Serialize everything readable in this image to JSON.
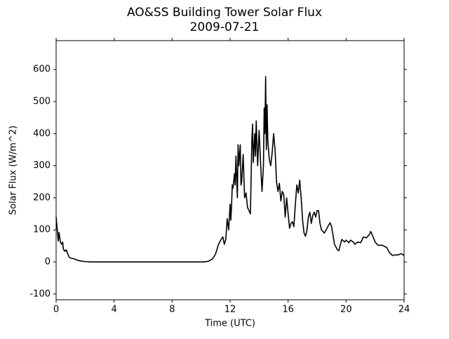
{
  "chart_data": {
    "type": "line",
    "title": "AO&SS Building Tower Solar Flux",
    "subtitle": "2009-07-21",
    "x_label": "Time (UTC)",
    "y_label": "Solar Flux (W/m^2)",
    "x": [
      0,
      0.1,
      0.15,
      0.2,
      0.3,
      0.4,
      0.45,
      0.5,
      0.6,
      0.7,
      0.8,
      0.9,
      1.0,
      1.2,
      1.5,
      1.8,
      2.0,
      2.5,
      10.0,
      10.2,
      10.5,
      10.8,
      11.0,
      11.2,
      11.4,
      11.5,
      11.6,
      11.7,
      11.8,
      11.9,
      12.0,
      12.05,
      12.1,
      12.15,
      12.2,
      12.3,
      12.35,
      12.4,
      12.5,
      12.55,
      12.6,
      12.7,
      12.75,
      12.8,
      12.9,
      13.0,
      13.1,
      13.2,
      13.3,
      13.4,
      13.5,
      13.55,
      13.6,
      13.7,
      13.75,
      13.8,
      13.9,
      14.0,
      14.1,
      14.2,
      14.3,
      14.35,
      14.4,
      14.45,
      14.5,
      14.55,
      14.6,
      14.7,
      14.8,
      14.9,
      15.0,
      15.1,
      15.2,
      15.3,
      15.4,
      15.5,
      15.6,
      15.7,
      15.8,
      15.9,
      16.0,
      16.1,
      16.2,
      16.3,
      16.4,
      16.5,
      16.6,
      16.7,
      16.8,
      16.9,
      17.0,
      17.1,
      17.2,
      17.3,
      17.4,
      17.5,
      17.6,
      17.7,
      17.8,
      17.9,
      18.0,
      18.1,
      18.2,
      18.3,
      18.5,
      18.8,
      18.9,
      19.0,
      19.2,
      19.4,
      19.5,
      19.7,
      19.9,
      20.0,
      20.2,
      20.3,
      20.5,
      20.6,
      20.8,
      21.0,
      21.2,
      21.4,
      21.6,
      21.7,
      21.8,
      22.0,
      22.2,
      22.5,
      22.8,
      23.0,
      23.2,
      23.4,
      23.6,
      23.8,
      24.0
    ],
    "series": [
      {
        "name": "Solar Flux",
        "color": "#000000",
        "values": [
          140,
          90,
          65,
          92,
          60,
          55,
          62,
          40,
          33,
          38,
          25,
          15,
          12,
          10,
          5,
          2,
          1,
          0,
          0,
          0,
          2,
          10,
          25,
          55,
          72,
          78,
          55,
          70,
          135,
          100,
          180,
          130,
          175,
          240,
          230,
          275,
          240,
          330,
          200,
          365,
          300,
          365,
          240,
          250,
          335,
          200,
          215,
          170,
          160,
          150,
          380,
          430,
          310,
          400,
          330,
          440,
          300,
          410,
          310,
          220,
          300,
          480,
          400,
          578,
          350,
          490,
          380,
          320,
          300,
          340,
          400,
          350,
          250,
          220,
          245,
          190,
          220,
          210,
          140,
          200,
          150,
          105,
          120,
          125,
          110,
          180,
          240,
          215,
          255,
          200,
          130,
          90,
          80,
          100,
          140,
          155,
          120,
          145,
          155,
          140,
          160,
          160,
          120,
          100,
          90,
          115,
          122,
          110,
          55,
          38,
          35,
          70,
          62,
          68,
          60,
          68,
          62,
          55,
          62,
          60,
          78,
          75,
          85,
          95,
          85,
          62,
          52,
          52,
          45,
          28,
          20,
          22,
          22,
          26,
          20
        ]
      }
    ],
    "xlim": [
      0,
      24
    ],
    "xticks": [
      0,
      4,
      8,
      12,
      16,
      20,
      24
    ],
    "ylim": [
      -118,
      690
    ],
    "yticks": [
      -100,
      0,
      100,
      200,
      300,
      400,
      500,
      600
    ]
  }
}
